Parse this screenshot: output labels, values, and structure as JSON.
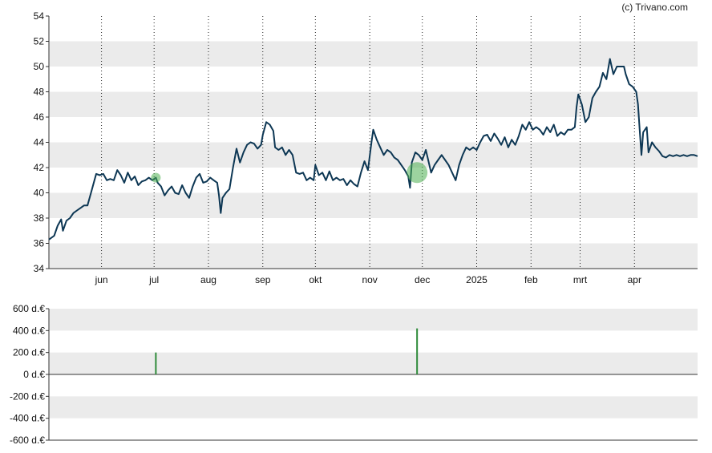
{
  "copyright": "(c) Trivano.com",
  "colors": {
    "band": "#ebebeb",
    "line": "#0d3754",
    "marker": "#4caf50",
    "bar": "#2e8b3a",
    "axis": "#333333"
  },
  "chart_data": [
    {
      "type": "line",
      "ylim": [
        34,
        54
      ],
      "y_ticks": [
        "34",
        "36",
        "38",
        "40",
        "42",
        "44",
        "46",
        "48",
        "50",
        "52",
        "54"
      ],
      "x_ticks": [
        "jun",
        "jul",
        "aug",
        "sep",
        "okt",
        "nov",
        "dec",
        "2025",
        "feb",
        "mrt",
        "apr"
      ],
      "x_tick_days": [
        30,
        60,
        91,
        122,
        152,
        183,
        213,
        244,
        275,
        303,
        334
      ],
      "x_range_days": [
        0,
        370
      ],
      "grid": "vertical dotted",
      "series_points": [
        [
          0,
          36.3
        ],
        [
          3,
          36.6
        ],
        [
          5,
          37.4
        ],
        [
          7,
          37.9
        ],
        [
          8,
          37.0
        ],
        [
          10,
          37.8
        ],
        [
          12,
          38.0
        ],
        [
          14,
          38.4
        ],
        [
          16,
          38.6
        ],
        [
          18,
          38.8
        ],
        [
          20,
          39.0
        ],
        [
          22,
          39.0
        ],
        [
          24,
          40.0
        ],
        [
          26,
          41.0
        ],
        [
          27,
          41.5
        ],
        [
          29,
          41.4
        ],
        [
          31,
          41.5
        ],
        [
          33,
          41.0
        ],
        [
          35,
          41.1
        ],
        [
          37,
          41.0
        ],
        [
          39,
          41.8
        ],
        [
          41,
          41.4
        ],
        [
          43,
          40.8
        ],
        [
          45,
          41.6
        ],
        [
          47,
          41.0
        ],
        [
          49,
          41.3
        ],
        [
          51,
          40.6
        ],
        [
          53,
          40.9
        ],
        [
          55,
          41.0
        ],
        [
          57,
          41.2
        ],
        [
          59,
          41.0
        ],
        [
          61,
          41.2
        ],
        [
          62,
          40.8
        ],
        [
          64,
          40.5
        ],
        [
          66,
          39.8
        ],
        [
          68,
          40.2
        ],
        [
          70,
          40.5
        ],
        [
          72,
          40.0
        ],
        [
          74,
          39.9
        ],
        [
          76,
          40.6
        ],
        [
          78,
          40.0
        ],
        [
          80,
          39.6
        ],
        [
          82,
          40.5
        ],
        [
          84,
          41.2
        ],
        [
          86,
          41.5
        ],
        [
          88,
          40.8
        ],
        [
          90,
          40.9
        ],
        [
          92,
          41.2
        ],
        [
          94,
          41.0
        ],
        [
          96,
          40.8
        ],
        [
          97,
          39.8
        ],
        [
          98,
          38.4
        ],
        [
          99,
          39.6
        ],
        [
          101,
          40.0
        ],
        [
          103,
          40.3
        ],
        [
          105,
          42.0
        ],
        [
          107,
          43.5
        ],
        [
          109,
          42.4
        ],
        [
          111,
          43.2
        ],
        [
          113,
          43.8
        ],
        [
          115,
          44.0
        ],
        [
          117,
          43.9
        ],
        [
          119,
          43.5
        ],
        [
          121,
          43.8
        ],
        [
          122,
          44.6
        ],
        [
          124,
          45.6
        ],
        [
          126,
          45.4
        ],
        [
          128,
          44.9
        ],
        [
          129,
          43.6
        ],
        [
          131,
          43.4
        ],
        [
          133,
          43.6
        ],
        [
          135,
          43.0
        ],
        [
          137,
          43.4
        ],
        [
          139,
          43.0
        ],
        [
          141,
          41.6
        ],
        [
          143,
          41.5
        ],
        [
          145,
          41.6
        ],
        [
          147,
          41.0
        ],
        [
          149,
          41.2
        ],
        [
          151,
          41.0
        ],
        [
          152,
          42.2
        ],
        [
          154,
          41.4
        ],
        [
          156,
          41.6
        ],
        [
          158,
          41.0
        ],
        [
          160,
          41.7
        ],
        [
          162,
          41.0
        ],
        [
          164,
          41.2
        ],
        [
          166,
          41.0
        ],
        [
          168,
          41.1
        ],
        [
          170,
          40.6
        ],
        [
          172,
          41.0
        ],
        [
          174,
          40.7
        ],
        [
          176,
          40.5
        ],
        [
          178,
          41.6
        ],
        [
          180,
          42.5
        ],
        [
          182,
          41.8
        ],
        [
          184,
          44.0
        ],
        [
          185,
          45.0
        ],
        [
          187,
          44.2
        ],
        [
          189,
          43.6
        ],
        [
          191,
          43.0
        ],
        [
          193,
          43.4
        ],
        [
          195,
          43.2
        ],
        [
          197,
          42.8
        ],
        [
          199,
          42.6
        ],
        [
          201,
          42.2
        ],
        [
          203,
          41.8
        ],
        [
          205,
          41.3
        ],
        [
          206,
          40.4
        ],
        [
          207,
          42.4
        ],
        [
          209,
          43.2
        ],
        [
          211,
          43.0
        ],
        [
          213,
          42.6
        ],
        [
          215,
          43.4
        ],
        [
          216,
          42.8
        ],
        [
          218,
          41.6
        ],
        [
          220,
          42.2
        ],
        [
          222,
          42.6
        ],
        [
          224,
          43.0
        ],
        [
          226,
          42.6
        ],
        [
          228,
          42.2
        ],
        [
          230,
          41.6
        ],
        [
          232,
          41.0
        ],
        [
          234,
          42.2
        ],
        [
          236,
          43.0
        ],
        [
          238,
          43.6
        ],
        [
          240,
          43.4
        ],
        [
          242,
          43.6
        ],
        [
          244,
          43.4
        ],
        [
          246,
          44.0
        ],
        [
          248,
          44.5
        ],
        [
          250,
          44.6
        ],
        [
          252,
          44.1
        ],
        [
          254,
          44.7
        ],
        [
          256,
          44.3
        ],
        [
          258,
          43.8
        ],
        [
          260,
          44.4
        ],
        [
          262,
          43.6
        ],
        [
          264,
          44.2
        ],
        [
          266,
          43.8
        ],
        [
          268,
          44.5
        ],
        [
          270,
          45.4
        ],
        [
          272,
          45.0
        ],
        [
          274,
          45.6
        ],
        [
          276,
          45.0
        ],
        [
          278,
          45.2
        ],
        [
          280,
          45.0
        ],
        [
          282,
          44.6
        ],
        [
          284,
          45.2
        ],
        [
          286,
          44.8
        ],
        [
          288,
          45.4
        ],
        [
          290,
          44.5
        ],
        [
          292,
          44.8
        ],
        [
          294,
          44.6
        ],
        [
          296,
          45.0
        ],
        [
          298,
          45.0
        ],
        [
          300,
          45.2
        ],
        [
          301,
          46.8
        ],
        [
          302,
          47.8
        ],
        [
          304,
          47.0
        ],
        [
          306,
          45.6
        ],
        [
          308,
          46.0
        ],
        [
          310,
          47.5
        ],
        [
          312,
          48.0
        ],
        [
          314,
          48.4
        ],
        [
          316,
          49.5
        ],
        [
          318,
          49.0
        ],
        [
          320,
          50.6
        ],
        [
          322,
          49.4
        ],
        [
          324,
          50.0
        ],
        [
          326,
          50.0
        ],
        [
          328,
          50.0
        ],
        [
          329,
          49.4
        ],
        [
          331,
          48.6
        ],
        [
          333,
          48.4
        ],
        [
          335,
          48.0
        ],
        [
          336,
          47.0
        ],
        [
          337,
          45.0
        ],
        [
          338,
          43.0
        ],
        [
          339,
          44.8
        ],
        [
          341,
          45.2
        ],
        [
          342,
          43.2
        ],
        [
          344,
          44.0
        ],
        [
          346,
          43.6
        ],
        [
          348,
          43.3
        ],
        [
          350,
          42.9
        ],
        [
          352,
          42.8
        ],
        [
          354,
          43.0
        ],
        [
          356,
          42.9
        ],
        [
          358,
          43.0
        ],
        [
          360,
          42.9
        ],
        [
          362,
          43.0
        ],
        [
          364,
          42.9
        ],
        [
          366,
          43.0
        ],
        [
          368,
          43.0
        ],
        [
          370,
          42.9
        ]
      ],
      "markers": [
        {
          "day": 61,
          "value": 41.2,
          "size": "small"
        },
        {
          "day": 210,
          "value": 41.6,
          "size": "large"
        }
      ]
    },
    {
      "type": "bar",
      "ylim": [
        -600,
        600
      ],
      "y_ticks": [
        "600 d.€",
        "400 d.€",
        "200 d.€",
        "0 d.€",
        "-200 d.€",
        "-400 d.€",
        "-600 d.€"
      ],
      "bars": [
        {
          "day": 61,
          "value": 200
        },
        {
          "day": 210,
          "value": 420
        }
      ]
    }
  ]
}
